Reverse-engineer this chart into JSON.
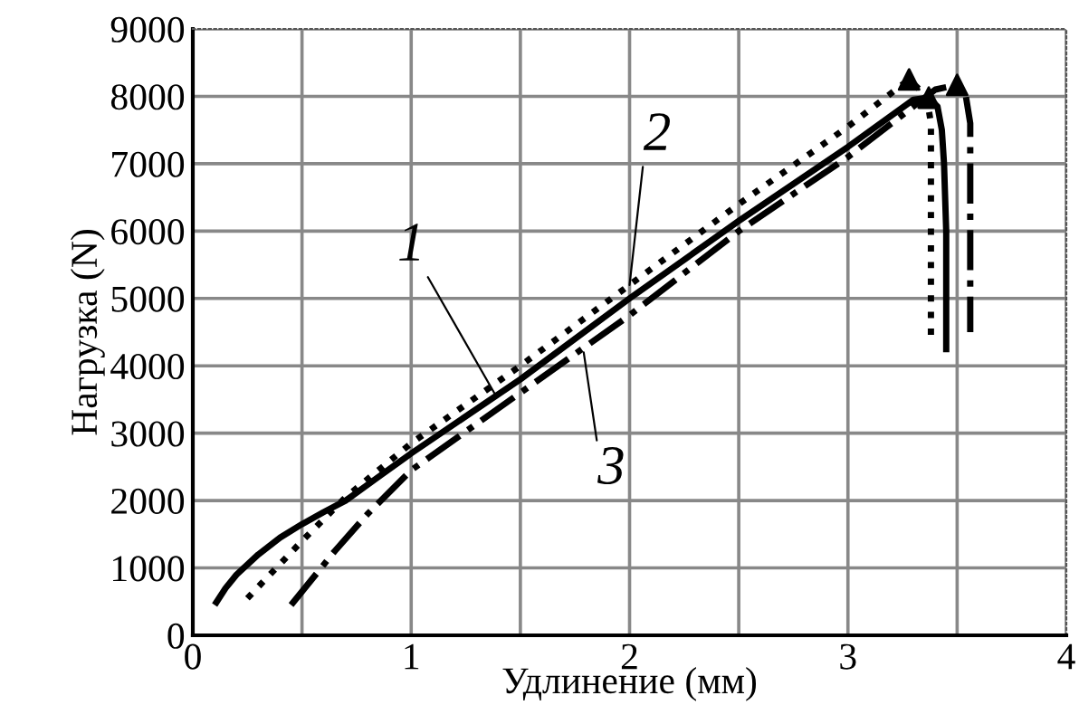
{
  "chart_data": {
    "type": "line",
    "xlabel": "Удлинение (мм)",
    "ylabel": "Нагрузка (N)",
    "xlim": [
      0,
      4
    ],
    "ylim": [
      0,
      9000
    ],
    "xticks": [
      0,
      {
        "value": 0.5,
        "label": null
      },
      1,
      {
        "value": 1.5,
        "label": null
      },
      2,
      {
        "value": 2.5,
        "label": null
      },
      3,
      {
        "value": 3.5,
        "label": null
      },
      4
    ],
    "yticks": [
      0,
      1000,
      2000,
      3000,
      4000,
      5000,
      6000,
      7000,
      8000,
      9000
    ],
    "grid": true,
    "annotations": [
      {
        "text": "1",
        "x": 1.38,
        "y": 3600
      },
      {
        "text": "2",
        "x": 2.0,
        "y": 5200
      },
      {
        "text": "3",
        "x": 1.79,
        "y": 4200
      }
    ],
    "series": [
      {
        "color": "#000000",
        "line_style": "solid",
        "x": [
          0.1,
          0.15,
          0.2,
          0.3,
          0.4,
          0.5,
          0.6,
          0.7,
          0.85,
          1.0,
          1.5,
          2.0,
          2.5,
          3.0,
          3.3,
          3.37,
          3.41,
          3.43,
          3.44,
          3.45,
          3.45
        ],
        "values": [
          450,
          700,
          900,
          1200,
          1450,
          1650,
          1830,
          2000,
          2350,
          2700,
          3800,
          5000,
          6150,
          7250,
          7950,
          7980,
          7850,
          7500,
          7000,
          6000,
          4200
        ]
      },
      {
        "color": "#000000",
        "line_style": "dotted",
        "x": [
          0.25,
          0.5,
          0.7,
          1.0,
          1.5,
          2.0,
          2.5,
          3.0,
          3.28,
          3.36,
          3.38,
          3.38
        ],
        "values": [
          550,
          1400,
          2050,
          2850,
          4000,
          5200,
          6400,
          7550,
          8250,
          8000,
          7600,
          4400
        ]
      },
      {
        "color": "#000000",
        "line_style": "dashdot",
        "x": [
          0.45,
          0.55,
          0.65,
          0.8,
          1.0,
          1.5,
          2.0,
          2.5,
          3.0,
          3.3,
          3.4,
          3.5,
          3.54,
          3.56,
          3.56
        ],
        "values": [
          450,
          850,
          1250,
          1800,
          2450,
          3600,
          4750,
          6000,
          7100,
          7850,
          8100,
          8170,
          8000,
          7600,
          4500
        ]
      },
      {
        "type": "scatter",
        "color": "#000000",
        "marker": "triangle",
        "x": [
          3.37,
          3.28,
          3.5
        ],
        "values": [
          7980,
          8250,
          8170
        ]
      }
    ]
  }
}
